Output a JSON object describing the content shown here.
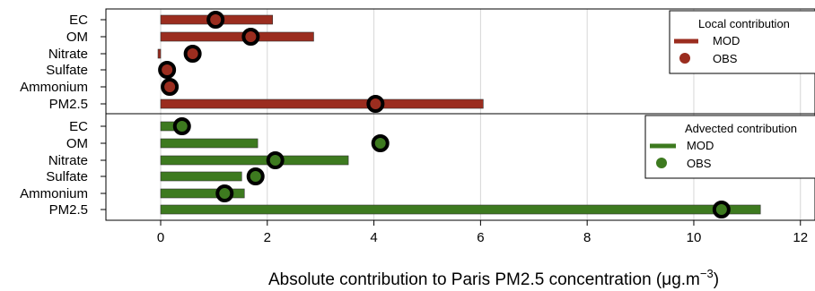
{
  "chart_data": {
    "type": "bar",
    "xlabel_main": "Absolute contribution to Paris PM2.5 concentration (",
    "xlabel_unit": "μg.m",
    "xlabel_exp": "−3",
    "xlabel_close": ")",
    "xlim": [
      -1,
      12.2
    ],
    "xticks": [
      0,
      2,
      4,
      6,
      8,
      10,
      12
    ],
    "grid": true,
    "panels": [
      {
        "legend_title": "Local contribution",
        "legend_mod": "MOD",
        "legend_obs": "OBS",
        "legend_position": "top-right",
        "color": "#9b2d1f",
        "categories": [
          "EC",
          "OM",
          "Nitrate",
          "Sulfate",
          "Ammonium",
          "PM2.5"
        ],
        "mod": [
          2.1,
          2.87,
          -0.05,
          0.0,
          0.0,
          6.05
        ],
        "obs": [
          1.03,
          1.69,
          0.6,
          0.12,
          0.17,
          4.03
        ]
      },
      {
        "legend_title": "Advected contribution",
        "legend_mod": "MOD",
        "legend_obs": "OBS",
        "legend_position": "top-right",
        "color": "#3d7a1f",
        "categories": [
          "EC",
          "OM",
          "Nitrate",
          "Sulfate",
          "Ammonium",
          "PM2.5"
        ],
        "mod": [
          0.28,
          1.82,
          3.52,
          1.52,
          1.57,
          11.25
        ],
        "obs": [
          0.4,
          4.12,
          2.15,
          1.78,
          1.2,
          10.52
        ]
      }
    ]
  }
}
